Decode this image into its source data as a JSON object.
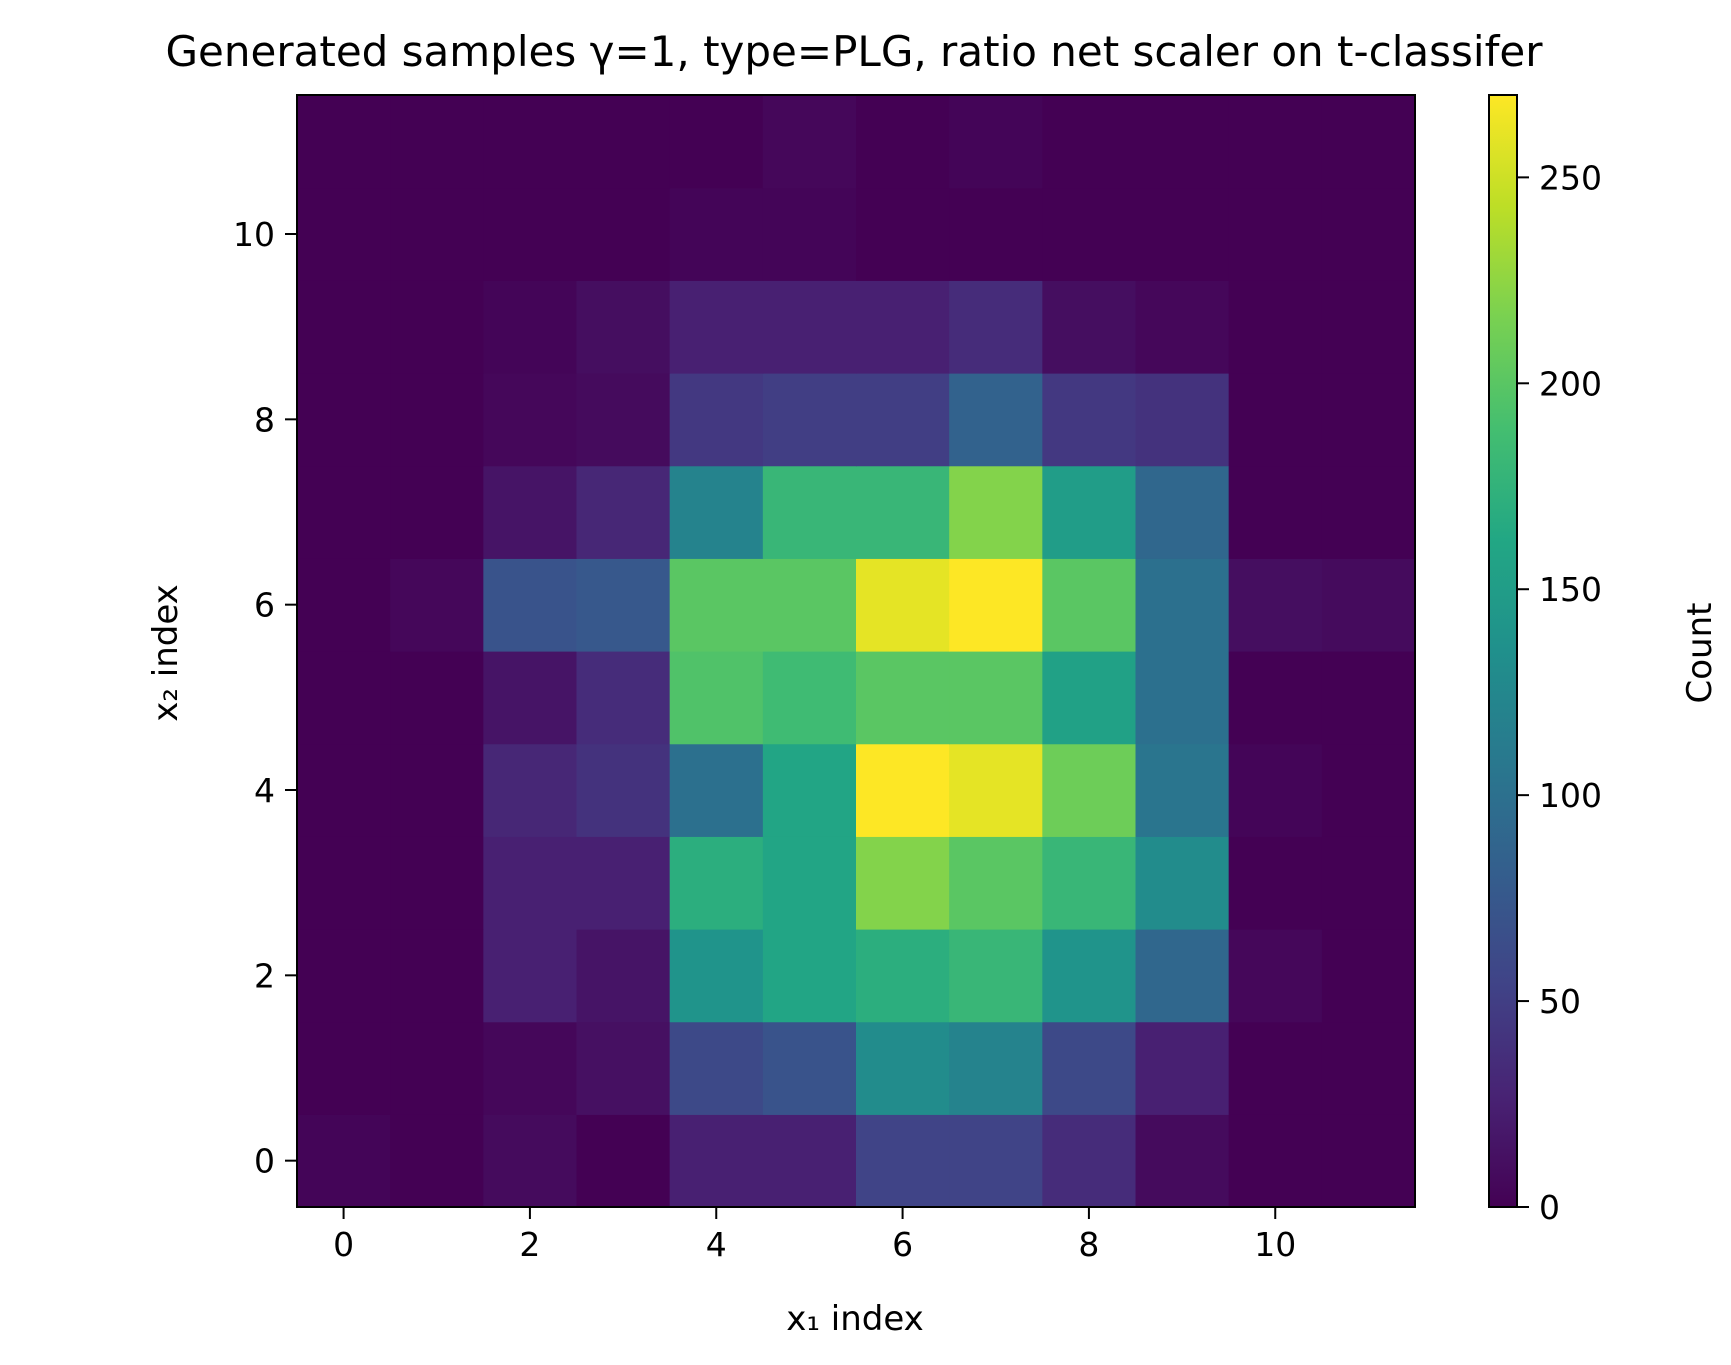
{
  "chart_data": {
    "type": "heatmap",
    "title": "Generated samples γ=1, type=PLG, ratio net scaler on t-classifer",
    "xlabel": "x₁ index",
    "ylabel": "x₂ index",
    "colorbar_label": "Count",
    "colormap": "viridis",
    "x_range": [
      -0.5,
      11.5
    ],
    "y_range": [
      -0.5,
      11.5
    ],
    "x_ticks": [
      0,
      2,
      4,
      6,
      8,
      10
    ],
    "y_ticks": [
      0,
      2,
      4,
      6,
      8,
      10
    ],
    "colorbar_ticks": [
      0,
      50,
      100,
      150,
      200,
      250
    ],
    "color_range": [
      0,
      270
    ],
    "grid": false,
    "x_bins": [
      0,
      1,
      2,
      3,
      4,
      5,
      6,
      7,
      8,
      9,
      10,
      11
    ],
    "y_bins": [
      0,
      1,
      2,
      3,
      4,
      5,
      6,
      7,
      8,
      9,
      10,
      11
    ],
    "values": [
      [
        3,
        0,
        8,
        0,
        25,
        25,
        55,
        55,
        35,
        8,
        0,
        0
      ],
      [
        0,
        0,
        5,
        12,
        60,
        70,
        130,
        120,
        60,
        25,
        0,
        0
      ],
      [
        0,
        0,
        25,
        15,
        140,
        160,
        170,
        180,
        140,
        90,
        5,
        0
      ],
      [
        0,
        0,
        25,
        25,
        170,
        160,
        220,
        200,
        180,
        130,
        0,
        0
      ],
      [
        0,
        0,
        30,
        40,
        100,
        160,
        270,
        260,
        210,
        105,
        3,
        0
      ],
      [
        0,
        0,
        15,
        35,
        195,
        185,
        200,
        200,
        155,
        100,
        0,
        0
      ],
      [
        0,
        5,
        70,
        75,
        200,
        200,
        260,
        270,
        200,
        100,
        10,
        8
      ],
      [
        0,
        0,
        15,
        30,
        120,
        180,
        180,
        220,
        150,
        90,
        0,
        0
      ],
      [
        0,
        0,
        5,
        8,
        45,
        50,
        50,
        85,
        45,
        40,
        0,
        0
      ],
      [
        0,
        0,
        3,
        10,
        25,
        25,
        25,
        35,
        10,
        5,
        0,
        0
      ],
      [
        0,
        0,
        0,
        0,
        3,
        3,
        0,
        0,
        0,
        0,
        0,
        0
      ],
      [
        0,
        0,
        0,
        0,
        0,
        5,
        0,
        3,
        0,
        0,
        0,
        0
      ]
    ]
  }
}
